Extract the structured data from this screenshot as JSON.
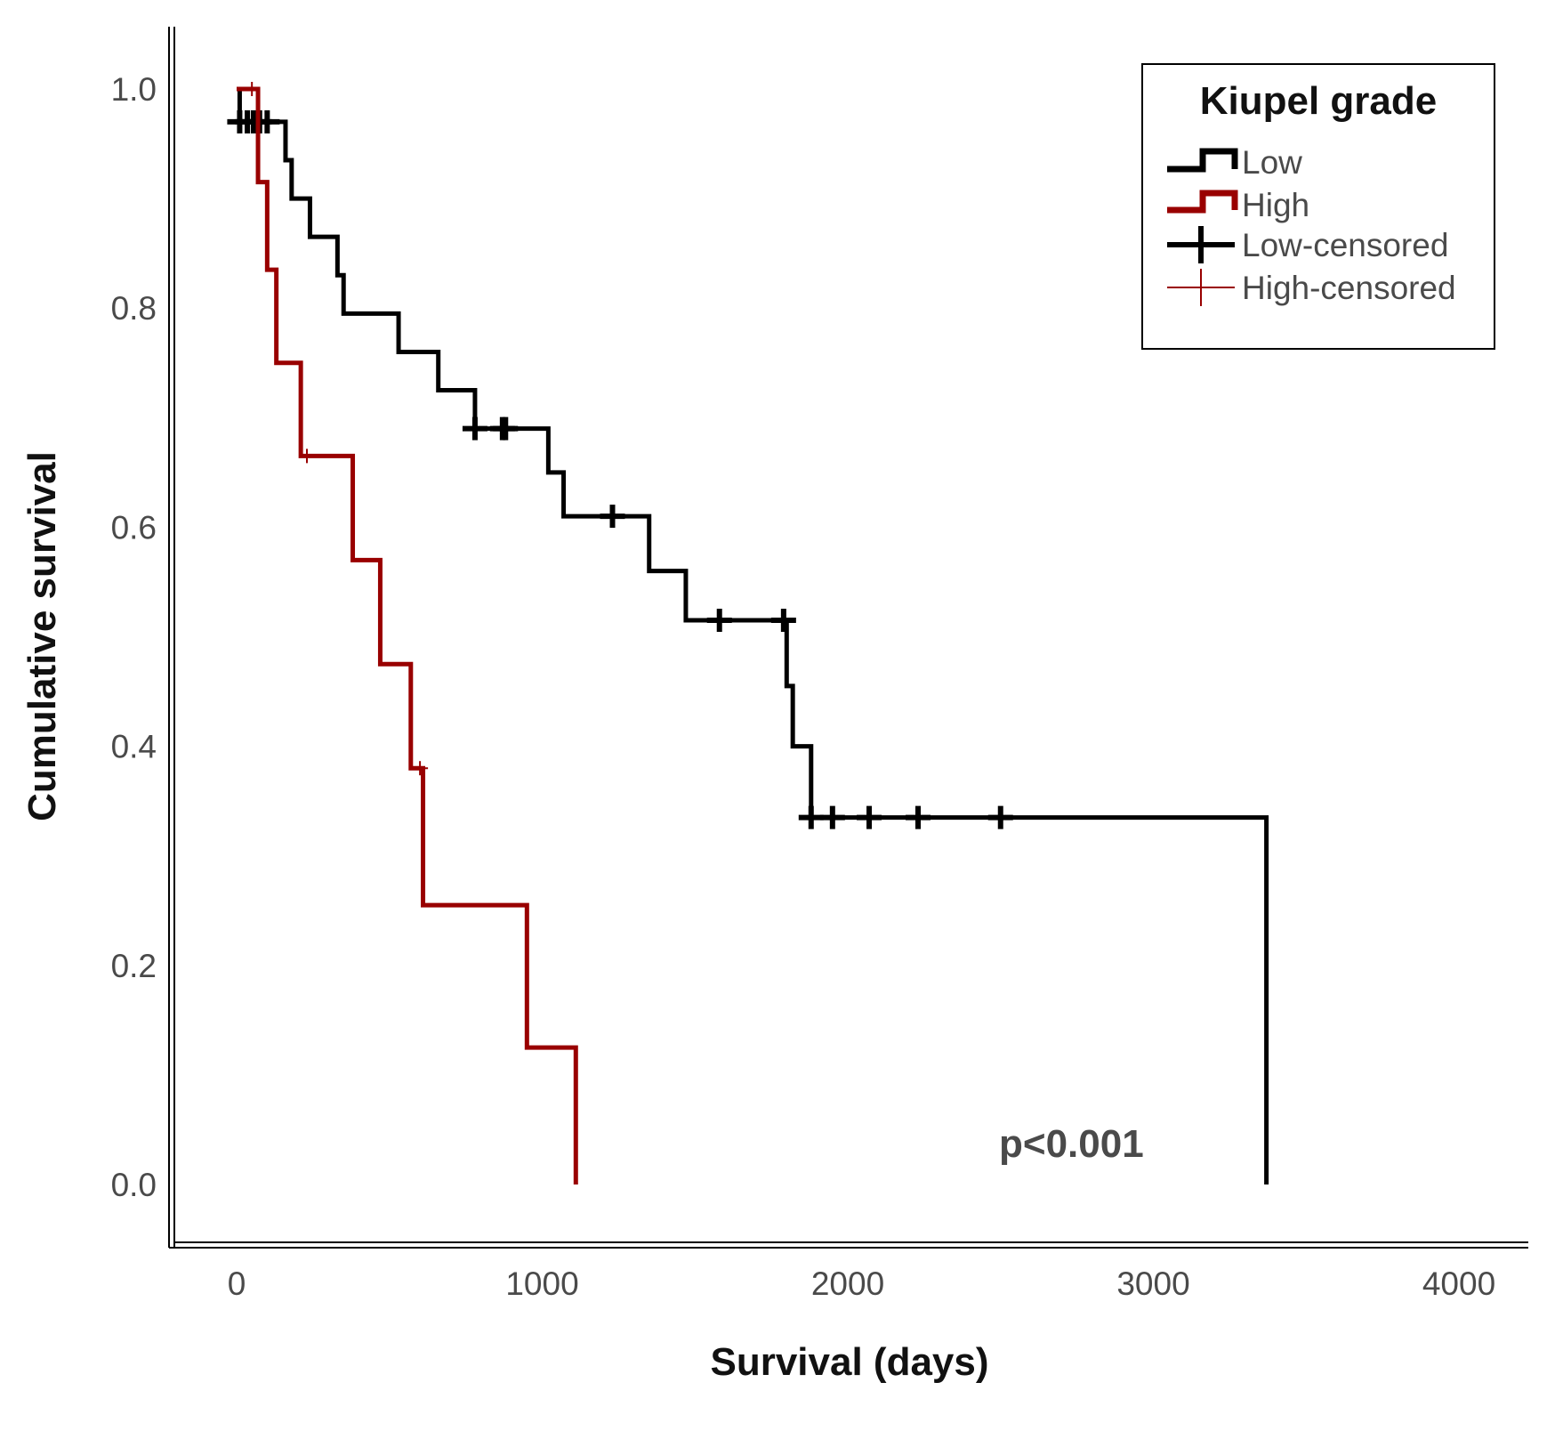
{
  "chart_data": {
    "type": "line",
    "subtype": "kaplan-meier-step",
    "xlabel": "Survival (days)",
    "ylabel": "Cumulative survival",
    "xlim": [
      0,
      4000
    ],
    "ylim": [
      0.0,
      1.0
    ],
    "x_ticks": [
      "0",
      "1000",
      "2000",
      "3000",
      "4000"
    ],
    "y_ticks": [
      "0.0",
      "0.2",
      "0.4",
      "0.6",
      "0.8",
      "1.0"
    ],
    "grid": false,
    "legend": {
      "title": "Kiupel grade",
      "placement": "top-right",
      "entries": [
        "Low",
        "High",
        "Low-censored",
        "High-censored"
      ]
    },
    "annotation": "p<0.001",
    "colors": {
      "Low": "#000000",
      "High": "#990000"
    },
    "series": [
      {
        "name": "Low",
        "color": "#000000",
        "steps": [
          [
            0,
            1.0
          ],
          [
            10,
            0.97
          ],
          [
            160,
            0.935
          ],
          [
            180,
            0.9
          ],
          [
            240,
            0.865
          ],
          [
            330,
            0.83
          ],
          [
            350,
            0.795
          ],
          [
            530,
            0.76
          ],
          [
            660,
            0.725
          ],
          [
            780,
            0.69
          ],
          [
            1020,
            0.65
          ],
          [
            1070,
            0.61
          ],
          [
            1350,
            0.56
          ],
          [
            1470,
            0.515
          ],
          [
            1800,
            0.455
          ],
          [
            1820,
            0.4
          ],
          [
            1880,
            0.335
          ],
          [
            3370,
            0.0
          ]
        ],
        "censored": [
          10,
          35,
          55,
          75,
          100,
          780,
          870,
          880,
          1230,
          1580,
          1790,
          1880,
          1950,
          2070,
          2230,
          2500
        ]
      },
      {
        "name": "High",
        "color": "#990000",
        "steps": [
          [
            0,
            1.0
          ],
          [
            70,
            0.915
          ],
          [
            100,
            0.835
          ],
          [
            130,
            0.75
          ],
          [
            210,
            0.665
          ],
          [
            380,
            0.57
          ],
          [
            470,
            0.475
          ],
          [
            570,
            0.38
          ],
          [
            610,
            0.255
          ],
          [
            950,
            0.125
          ],
          [
            1110,
            0.0
          ]
        ],
        "censored": [
          50,
          230,
          600
        ]
      }
    ]
  }
}
